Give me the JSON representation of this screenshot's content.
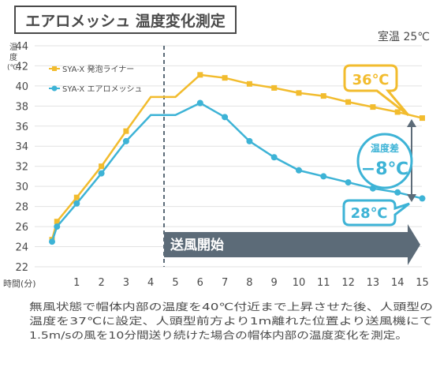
{
  "header": {
    "title": "エアロメッシュ 温度変化測定",
    "room_temp": "室温 25℃"
  },
  "callouts": {
    "high": "36℃",
    "low": "28℃",
    "diff_label": "温度差",
    "diff_value": "−8℃"
  },
  "banner": "送風開始",
  "caption": [
    "無風状態で帽体内部の温度を40℃付近まで上昇させた後、人頭型の",
    "温度を37℃に設定、人頭型前方より1m離れた位置より送風機にて",
    "1.5m/sの風を10分間送り続けた場合の帽体内部の温度変化を測定。"
  ],
  "colors": {
    "yellow": "#F2BC2E",
    "blue": "#3DB3D6",
    "banner": "#5C6B78",
    "text": "#4A4A4A",
    "grid": "#E2E2E2"
  },
  "chart_data": {
    "type": "line",
    "xlabel": "時間(分)",
    "ylabel": "温度 (℃)",
    "x": [
      0,
      1,
      2,
      3,
      4,
      5,
      6,
      7,
      8,
      9,
      10,
      11,
      12,
      13,
      14,
      15
    ],
    "xticks": [
      1,
      2,
      3,
      4,
      5,
      6,
      7,
      8,
      9,
      10,
      11,
      12,
      13,
      14,
      15
    ],
    "ylim": [
      22,
      44
    ],
    "yticks": [
      22,
      24,
      26,
      28,
      30,
      32,
      34,
      36,
      38,
      40,
      42,
      44
    ],
    "grid": true,
    "legend_position": "top-left",
    "series": [
      {
        "name": "SYA-X 発泡ライナー",
        "color": "#F2BC2E",
        "marker_x": [
          0,
          0.2,
          1,
          2,
          3,
          6,
          7,
          8,
          9,
          10,
          11,
          12,
          13,
          14,
          15
        ],
        "marker_y": [
          24.7,
          26.5,
          28.9,
          32.0,
          35.5,
          41.1,
          40.8,
          40.2,
          39.8,
          39.3,
          39.0,
          38.4,
          37.9,
          37.4,
          36.8
        ],
        "line_x": [
          0,
          0.2,
          1,
          2,
          3,
          4,
          5,
          6,
          7,
          8,
          9,
          10,
          11,
          12,
          13,
          14,
          15
        ],
        "line_y": [
          24.7,
          26.5,
          28.9,
          32.0,
          35.5,
          38.9,
          38.9,
          41.1,
          40.8,
          40.2,
          39.8,
          39.3,
          39.0,
          38.4,
          37.9,
          37.4,
          36.8
        ]
      },
      {
        "name": "SYA-X エアロメッシュ",
        "color": "#3DB3D6",
        "marker_x": [
          0,
          0.2,
          1,
          2,
          3,
          6,
          7,
          8,
          9,
          10,
          11,
          12,
          13,
          14,
          15
        ],
        "marker_y": [
          24.5,
          26.0,
          28.3,
          31.3,
          34.5,
          38.3,
          36.9,
          34.5,
          32.9,
          31.6,
          31.0,
          30.4,
          29.8,
          29.4,
          28.8
        ],
        "line_x": [
          0,
          0.2,
          1,
          2,
          3,
          4,
          5,
          6,
          7,
          8,
          9,
          10,
          11,
          12,
          13,
          14,
          15
        ],
        "line_y": [
          24.5,
          26.0,
          28.3,
          31.3,
          34.5,
          37.1,
          37.1,
          38.3,
          36.9,
          34.5,
          32.9,
          31.6,
          31.0,
          30.4,
          29.8,
          29.4,
          28.8
        ]
      }
    ]
  }
}
